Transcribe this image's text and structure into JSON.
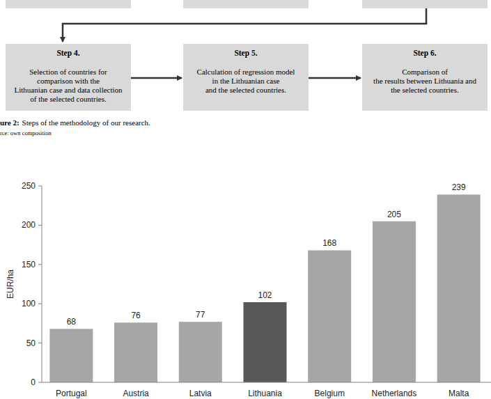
{
  "flowchart": {
    "steps": [
      {
        "title": "Step 4.",
        "lines": [
          "Selection of countries for",
          "comparison with the",
          "Lithuanian case and data collection",
          "of the selected countries."
        ]
      },
      {
        "title": "Step 5.",
        "lines": [
          "Calculation of regression model",
          "in the Lithuanian case",
          "and the selected countries."
        ]
      },
      {
        "title": "Step 6.",
        "lines": [
          "Comparison of",
          "the results between Lithuania and",
          "the selected countries."
        ]
      }
    ]
  },
  "caption": {
    "label": "ure 2:",
    "text": "Steps of the methodology of our research.",
    "source": "rce: own composition"
  },
  "chart_data": {
    "type": "bar",
    "y_label": "EUR/ha",
    "categories": [
      "Portugal",
      "Austria",
      "Latvia",
      "Lithuania",
      "Belgium",
      "Netherlands",
      "Malta"
    ],
    "values": [
      68,
      76,
      77,
      102,
      168,
      205,
      239
    ],
    "colors": [
      "#a6a6a6",
      "#a6a6a6",
      "#a6a6a6",
      "#58585a",
      "#a6a6a6",
      "#a6a6a6",
      "#a6a6a6"
    ],
    "ylim": [
      0,
      250
    ],
    "yticks": [
      0,
      50,
      100,
      150,
      200,
      250
    ],
    "grid": false,
    "data_labels": true
  }
}
